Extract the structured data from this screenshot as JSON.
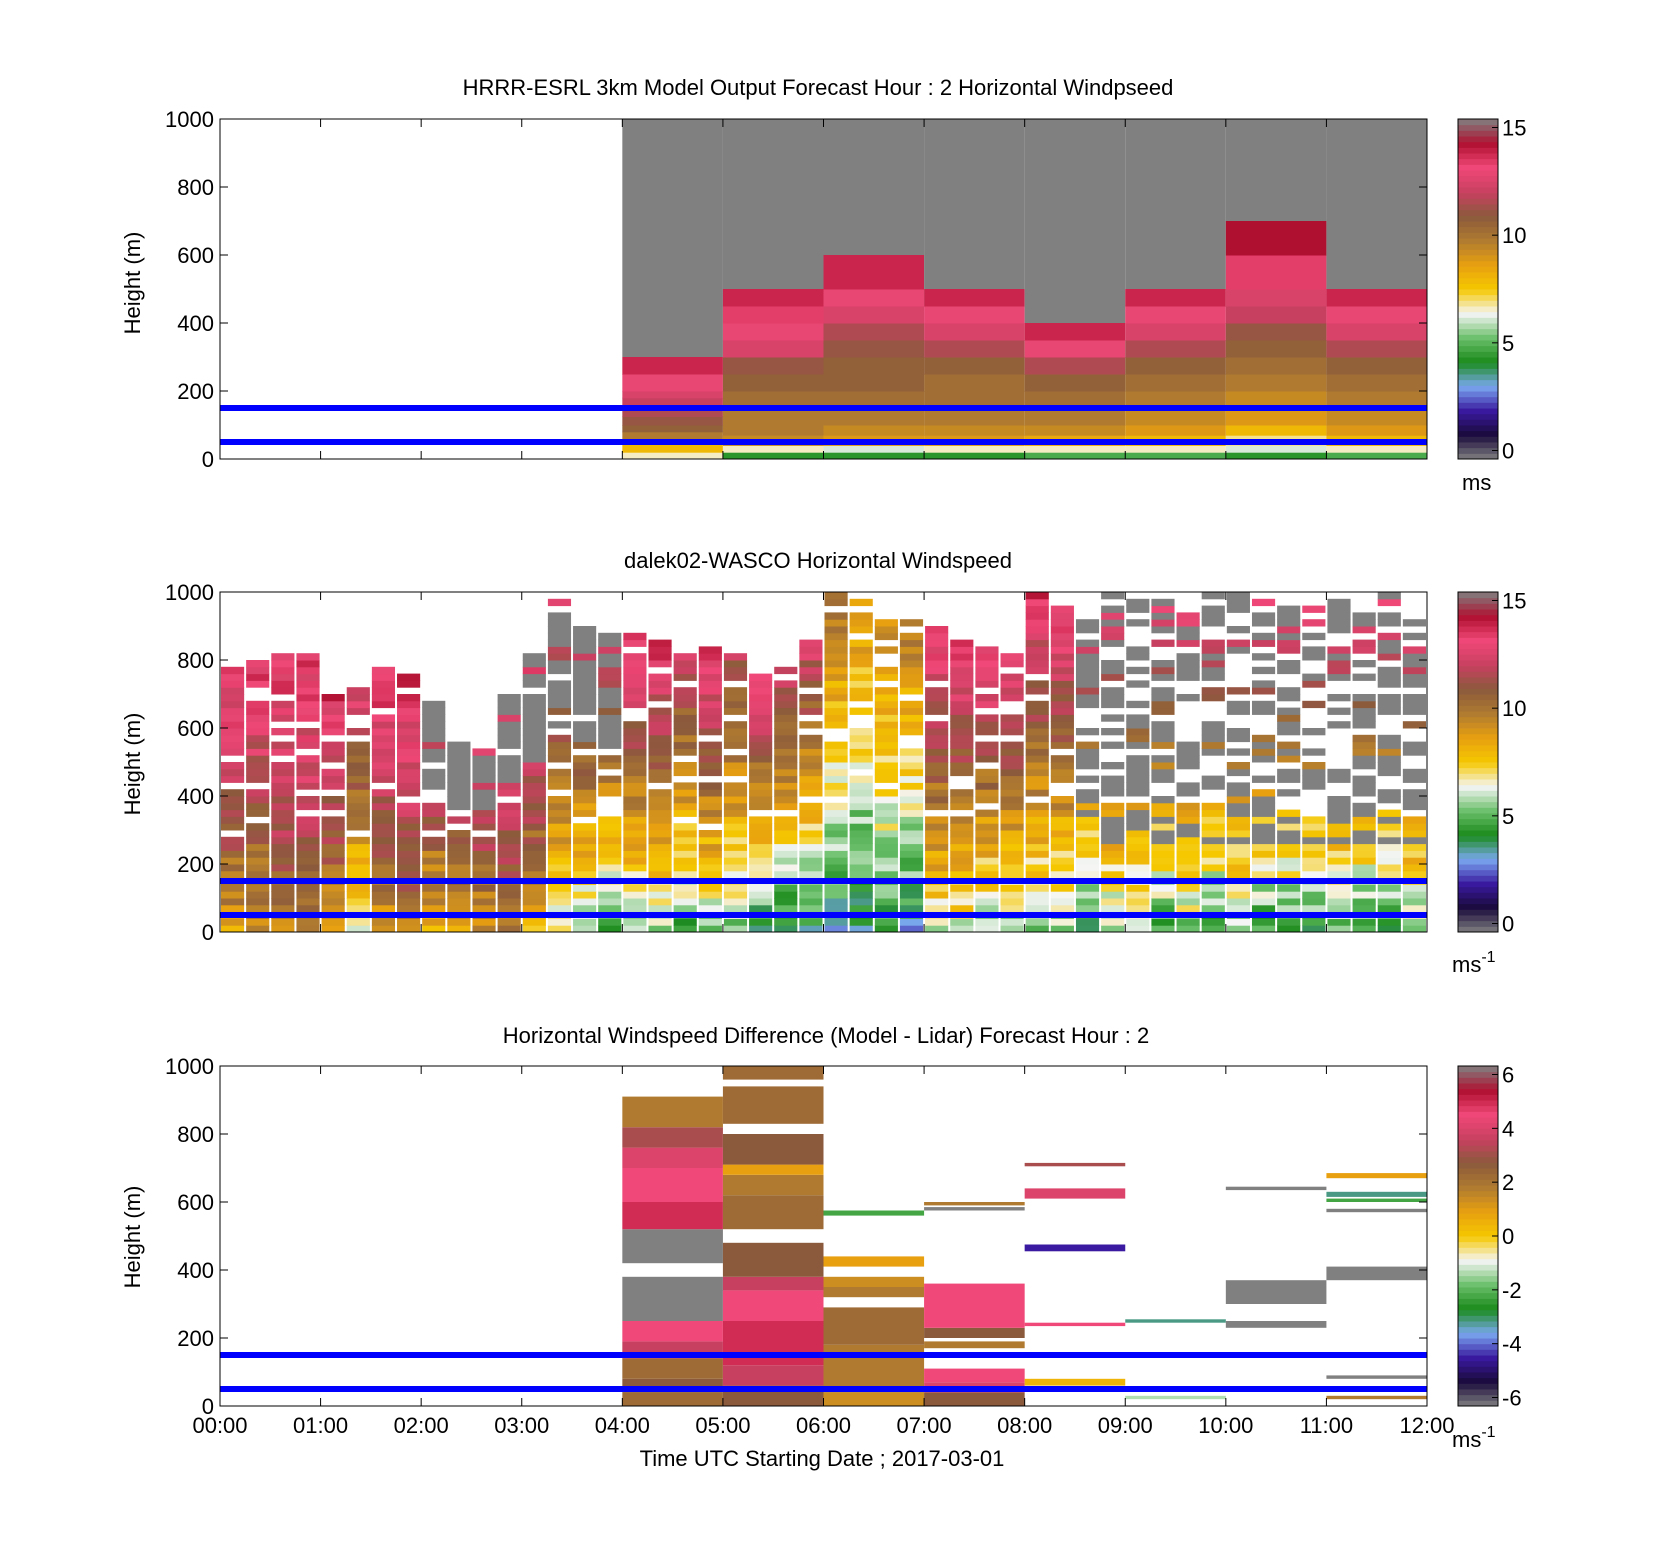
{
  "panels": [
    {
      "title": "HRRR-ESRL 3km Model Output   Forecast Hour : 2 Horizontal Windpseed",
      "ylabel": "Height (m)",
      "yticks": [
        "0",
        "200",
        "400",
        "600",
        "800",
        "1000"
      ],
      "colorbar": {
        "ticks": [
          "0",
          "5",
          "10",
          "15"
        ],
        "unit": "ms",
        "unit_sup": "",
        "range": [
          0,
          15
        ]
      }
    },
    {
      "title": "dalek02-WASCO  Horizontal Windspeed",
      "ylabel": "Height (m)",
      "yticks": [
        "0",
        "200",
        "400",
        "600",
        "800",
        "1000"
      ],
      "colorbar": {
        "ticks": [
          "0",
          "5",
          "10",
          "15"
        ],
        "unit": "ms",
        "unit_sup": "-1",
        "range": [
          0,
          15
        ]
      }
    },
    {
      "title": "Horizontal Windspeed Difference (Model - Lidar) Forecast Hour : 2",
      "ylabel": "Height (m)",
      "yticks": [
        "0",
        "200",
        "400",
        "600",
        "800",
        "1000"
      ],
      "colorbar": {
        "ticks": [
          "-6",
          "-4",
          "-2",
          "0",
          "2",
          "4",
          "6"
        ],
        "unit": "ms",
        "unit_sup": "-1",
        "range": [
          -6,
          6
        ]
      }
    }
  ],
  "xaxis": {
    "ticks": [
      "00:00",
      "01:00",
      "02:00",
      "03:00",
      "04:00",
      "05:00",
      "06:00",
      "07:00",
      "08:00",
      "09:00",
      "10:00",
      "11:00",
      "12:00"
    ],
    "label": "Time UTC  Starting Date ; 2017-03-01"
  },
  "chart_data": [
    {
      "type": "heatmap",
      "title": "HRRR-ESRL 3km Model Output   Forecast Hour : 2 Horizontal Windpseed",
      "ylabel": "Height (m)",
      "xlim_hours": [
        0,
        12
      ],
      "ylim": [
        0,
        1000
      ],
      "color_range": [
        0,
        15
      ],
      "no_data_color": "#808080",
      "reference_lines_m": [
        50,
        150
      ],
      "columns": [
        {
          "start_hour": 4,
          "end_hour": 5,
          "top_m": 300,
          "cells": [
            [
              0,
              20,
              6.5
            ],
            [
              20,
              50,
              8
            ],
            [
              50,
              80,
              10
            ],
            [
              80,
              100,
              11
            ],
            [
              100,
              125,
              11.5
            ],
            [
              125,
              150,
              12
            ],
            [
              150,
              180,
              12.5
            ],
            [
              180,
              200,
              13
            ],
            [
              200,
              250,
              13.5
            ],
            [
              250,
              300,
              14.5
            ]
          ]
        },
        {
          "start_hour": 5,
          "end_hour": 6,
          "top_m": 500,
          "cells": [
            [
              0,
              20,
              4
            ],
            [
              20,
              40,
              6.5
            ],
            [
              40,
              70,
              9.5
            ],
            [
              70,
              100,
              10
            ],
            [
              100,
              150,
              10
            ],
            [
              150,
              200,
              10.5
            ],
            [
              200,
              250,
              11
            ],
            [
              250,
              300,
              11.5
            ],
            [
              300,
              350,
              13
            ],
            [
              350,
              400,
              13.5
            ],
            [
              400,
              450,
              14
            ],
            [
              450,
              500,
              14.5
            ]
          ]
        },
        {
          "start_hour": 6,
          "end_hour": 7,
          "top_m": 600,
          "cells": [
            [
              0,
              20,
              4
            ],
            [
              20,
              40,
              6
            ],
            [
              40,
              70,
              9
            ],
            [
              70,
              100,
              9.5
            ],
            [
              100,
              150,
              10
            ],
            [
              150,
              200,
              10.5
            ],
            [
              200,
              250,
              11
            ],
            [
              250,
              300,
              11
            ],
            [
              300,
              350,
              11.5
            ],
            [
              350,
              400,
              12
            ],
            [
              400,
              450,
              13
            ],
            [
              450,
              500,
              13.5
            ],
            [
              500,
              600,
              14.5
            ]
          ]
        },
        {
          "start_hour": 7,
          "end_hour": 8,
          "top_m": 500,
          "cells": [
            [
              0,
              20,
              4
            ],
            [
              20,
              40,
              6.5
            ],
            [
              40,
              70,
              9
            ],
            [
              70,
              100,
              9.5
            ],
            [
              100,
              150,
              10
            ],
            [
              150,
              200,
              10.5
            ],
            [
              200,
              250,
              10.5
            ],
            [
              250,
              300,
              11
            ],
            [
              300,
              350,
              12
            ],
            [
              350,
              400,
              13
            ],
            [
              400,
              450,
              13.5
            ],
            [
              450,
              500,
              14.5
            ]
          ]
        },
        {
          "start_hour": 8,
          "end_hour": 9,
          "top_m": 400,
          "cells": [
            [
              0,
              20,
              4.5
            ],
            [
              20,
              40,
              6.5
            ],
            [
              40,
              70,
              8.5
            ],
            [
              70,
              100,
              9.5
            ],
            [
              100,
              150,
              10
            ],
            [
              150,
              200,
              10.5
            ],
            [
              200,
              250,
              11
            ],
            [
              250,
              300,
              12
            ],
            [
              300,
              350,
              13.5
            ],
            [
              350,
              400,
              14.5
            ]
          ]
        },
        {
          "start_hour": 9,
          "end_hour": 10,
          "top_m": 500,
          "cells": [
            [
              0,
              20,
              4.5
            ],
            [
              20,
              40,
              6.5
            ],
            [
              40,
              70,
              8
            ],
            [
              70,
              100,
              9
            ],
            [
              100,
              150,
              9.5
            ],
            [
              150,
              200,
              10
            ],
            [
              200,
              250,
              10.5
            ],
            [
              250,
              300,
              11
            ],
            [
              300,
              350,
              12
            ],
            [
              350,
              400,
              13
            ],
            [
              400,
              450,
              13.5
            ],
            [
              450,
              500,
              14.5
            ]
          ]
        },
        {
          "start_hour": 10,
          "end_hour": 11,
          "top_m": 700,
          "cells": [
            [
              0,
              20,
              4
            ],
            [
              20,
              40,
              6
            ],
            [
              40,
              70,
              6.8
            ],
            [
              70,
              100,
              8
            ],
            [
              100,
              150,
              9
            ],
            [
              150,
              200,
              9.5
            ],
            [
              200,
              250,
              10
            ],
            [
              250,
              300,
              10.5
            ],
            [
              300,
              350,
              11
            ],
            [
              350,
              400,
              11.5
            ],
            [
              400,
              450,
              12.5
            ],
            [
              450,
              500,
              13
            ],
            [
              500,
              600,
              14
            ],
            [
              600,
              700,
              15
            ]
          ]
        },
        {
          "start_hour": 11,
          "end_hour": 12,
          "top_m": 500,
          "cells": [
            [
              0,
              20,
              4.5
            ],
            [
              20,
              40,
              6.5
            ],
            [
              40,
              70,
              8
            ],
            [
              70,
              100,
              9
            ],
            [
              100,
              150,
              9.5
            ],
            [
              150,
              200,
              10
            ],
            [
              200,
              250,
              10.5
            ],
            [
              250,
              300,
              11
            ],
            [
              300,
              350,
              12
            ],
            [
              350,
              400,
              13
            ],
            [
              400,
              450,
              13.5
            ],
            [
              450,
              500,
              14.5
            ]
          ]
        }
      ]
    },
    {
      "type": "heatmap",
      "title": "dalek02-WASCO  Horizontal Windspeed",
      "ylabel": "Height (m)",
      "xlim_hours": [
        0,
        12
      ],
      "ylim": [
        0,
        1000
      ],
      "color_range": [
        0,
        15
      ],
      "no_data_color": "#808080",
      "reference_lines_m": [
        50,
        150
      ],
      "profiles_per_hour": 4,
      "profile_top_m": [
        780,
        800,
        820,
        820,
        700,
        720,
        780,
        760,
        680,
        560,
        540,
        700,
        820,
        980,
        900,
        880,
        880,
        860,
        840,
        840,
        820,
        760,
        780,
        860,
        1000,
        980,
        920,
        940,
        900,
        860,
        840,
        820,
        1000,
        960,
        940,
        1000,
        980,
        1000,
        960,
        1000,
        1000,
        980,
        1000,
        960,
        1000,
        960,
        1000,
        940
      ],
      "profile_speed_at_0_m": [
        9,
        9,
        10,
        10,
        9,
        6,
        9,
        10,
        8,
        8,
        9,
        10,
        8,
        6,
        5,
        4,
        5,
        5,
        4,
        5,
        5,
        3,
        3,
        3,
        3,
        3,
        4,
        3,
        6,
        6,
        5,
        5,
        5,
        5,
        4,
        5,
        5,
        4,
        5,
        4,
        5,
        4,
        4,
        4,
        5,
        4,
        4,
        5
      ],
      "profile_speed_at_top": [
        14,
        14,
        14,
        14,
        14,
        13,
        14,
        14,
        14,
        14,
        14,
        14,
        15,
        14,
        14,
        14,
        14,
        14,
        13,
        14,
        12,
        14,
        13,
        13,
        10,
        9,
        9,
        10,
        14,
        14,
        14,
        14,
        14,
        14,
        14,
        14,
        14,
        14,
        14,
        14,
        14,
        14,
        14,
        14,
        14,
        14,
        14,
        14
      ],
      "note_values_in": "ms-1"
    },
    {
      "type": "heatmap",
      "title": "Horizontal Windspeed Difference (Model - Lidar) Forecast Hour : 2",
      "ylabel": "Height (m)",
      "xlim_hours": [
        0,
        12
      ],
      "ylim": [
        0,
        1000
      ],
      "color_range": [
        -6,
        6
      ],
      "no_data_color": "#808080",
      "reference_lines_m": [
        50,
        150
      ],
      "cells": [
        [
          4,
          5,
          0,
          40,
          2.5
        ],
        [
          4,
          5,
          40,
          80,
          3
        ],
        [
          4,
          5,
          80,
          140,
          2.5
        ],
        [
          4,
          5,
          140,
          190,
          4
        ],
        [
          4,
          5,
          190,
          250,
          5
        ],
        [
          4,
          5,
          250,
          380,
          "nd"
        ],
        [
          4,
          5,
          420,
          520,
          "nd"
        ],
        [
          4,
          5,
          520,
          600,
          5.5
        ],
        [
          4,
          5,
          600,
          700,
          5
        ],
        [
          4,
          5,
          700,
          760,
          4.5
        ],
        [
          4,
          5,
          760,
          820,
          3.5
        ],
        [
          4,
          5,
          820,
          910,
          2
        ],
        [
          5,
          6,
          0,
          60,
          3
        ],
        [
          5,
          6,
          60,
          120,
          4
        ],
        [
          5,
          6,
          120,
          250,
          5.5
        ],
        [
          5,
          6,
          250,
          340,
          5
        ],
        [
          5,
          6,
          340,
          380,
          4
        ],
        [
          5,
          6,
          380,
          480,
          3
        ],
        [
          5,
          6,
          520,
          620,
          2.5
        ],
        [
          5,
          6,
          620,
          680,
          2
        ],
        [
          5,
          6,
          680,
          710,
          1
        ],
        [
          5,
          6,
          710,
          800,
          3
        ],
        [
          5,
          6,
          830,
          940,
          2.5
        ],
        [
          5,
          6,
          960,
          1000,
          2.5
        ],
        [
          6,
          7,
          0,
          40,
          1.5
        ],
        [
          6,
          7,
          40,
          100,
          2
        ],
        [
          6,
          7,
          100,
          180,
          2
        ],
        [
          6,
          7,
          180,
          290,
          2.5
        ],
        [
          6,
          7,
          320,
          350,
          2
        ],
        [
          6,
          7,
          350,
          380,
          1.5
        ],
        [
          6,
          7,
          410,
          440,
          1
        ],
        [
          6,
          7,
          560,
          575,
          -2.5
        ],
        [
          7,
          8,
          0,
          40,
          3
        ],
        [
          7,
          8,
          40,
          70,
          4.5
        ],
        [
          7,
          8,
          70,
          110,
          5
        ],
        [
          7,
          8,
          170,
          190,
          2
        ],
        [
          7,
          8,
          200,
          230,
          3
        ],
        [
          7,
          8,
          230,
          360,
          5
        ],
        [
          7,
          8,
          575,
          585,
          "nd"
        ],
        [
          7,
          8,
          590,
          600,
          2
        ],
        [
          8,
          9,
          60,
          80,
          0.5
        ],
        [
          8,
          9,
          235,
          245,
          5
        ],
        [
          8,
          9,
          455,
          475,
          -5
        ],
        [
          8,
          9,
          610,
          640,
          4.5
        ],
        [
          8,
          9,
          705,
          715,
          3.5
        ],
        [
          9,
          10,
          20,
          30,
          -1.5
        ],
        [
          9,
          10,
          245,
          255,
          -3.5
        ],
        [
          10,
          11,
          230,
          250,
          "nd"
        ],
        [
          10,
          11,
          300,
          370,
          "nd"
        ],
        [
          10,
          11,
          635,
          645,
          "nd"
        ],
        [
          11,
          12,
          20,
          30,
          2
        ],
        [
          11,
          12,
          80,
          90,
          "nd"
        ],
        [
          11,
          12,
          370,
          410,
          "nd"
        ],
        [
          11,
          12,
          570,
          580,
          "nd"
        ],
        [
          11,
          12,
          600,
          610,
          -2.5
        ],
        [
          11,
          12,
          615,
          630,
          -3.5
        ],
        [
          11,
          12,
          670,
          685,
          1
        ]
      ]
    }
  ],
  "colors": {
    "reference_line": "#0000ff",
    "no_data": "#808080",
    "speed_colormap": [
      "#808080",
      "#1a0a3c",
      "#3a1aa0",
      "#7aa8f0",
      "#1a8a1a",
      "#6cc06c",
      "#f5f5f5",
      "#f5c800",
      "#e8a010",
      "#b07b30",
      "#8b5a3c",
      "#c84060",
      "#f04878",
      "#b01030",
      "#808080"
    ],
    "diff_colormap": [
      "#808080",
      "#1a0a3c",
      "#3a1aa0",
      "#7aa8f0",
      "#1a8a1a",
      "#6cc06c",
      "#f5f5f5",
      "#f5c800",
      "#e8a010",
      "#b07b30",
      "#8b5a3c",
      "#c84060",
      "#f04878",
      "#b01030",
      "#808080"
    ]
  }
}
